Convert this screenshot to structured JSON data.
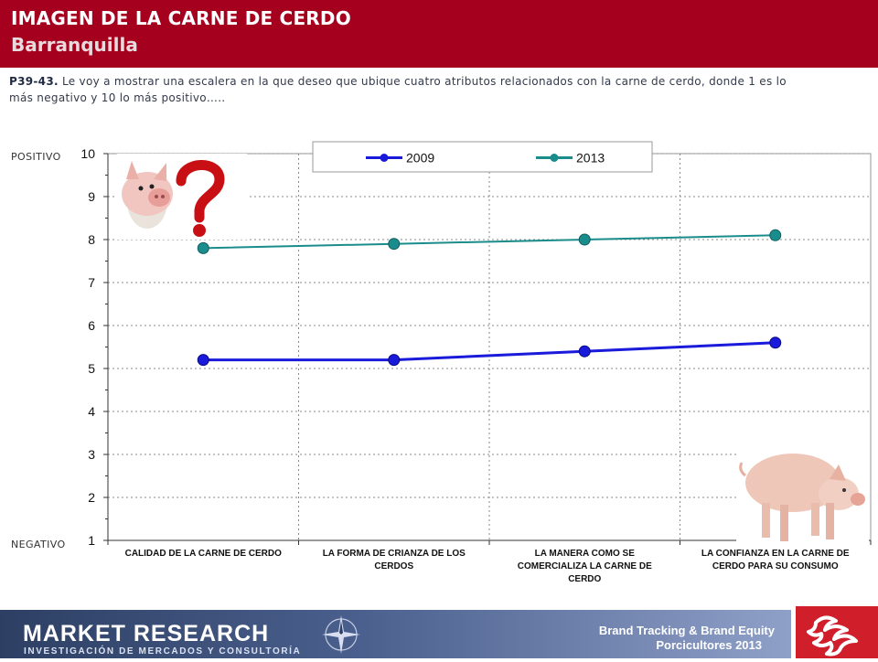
{
  "header": {
    "title": "IMAGEN DE LA CARNE DE CERDO",
    "subtitle": "Barranquilla",
    "color": "#a5001e"
  },
  "question": {
    "code": "P39-43.",
    "text": "Le voy a mostrar una escalera en la que deseo que ubique cuatro atributos relacionados con la carne de cerdo, donde 1 es lo más negativo y 10 lo más positivo….."
  },
  "scale_labels": {
    "top": "POSITIVO",
    "bottom": "NEGATIVO"
  },
  "chart_data": {
    "type": "line",
    "categories": [
      "CALIDAD DE LA CARNE DE CERDO",
      "LA FORMA DE CRIANZA DE LOS CERDOS",
      "LA MANERA COMO SE COMERCIALIZA LA CARNE DE CERDO",
      "LA CONFIANZA EN LA CARNE DE CERDO PARA SU CONSUMO"
    ],
    "category_lines": [
      [
        "CALIDAD DE LA CARNE DE CERDO"
      ],
      [
        "LA FORMA DE CRIANZA DE LOS",
        "CERDOS"
      ],
      [
        "LA MANERA COMO SE",
        "COMERCIALIZA LA CARNE DE",
        "CERDO"
      ],
      [
        "LA CONFIANZA EN LA CARNE DE",
        "CERDO PARA SU CONSUMO"
      ]
    ],
    "series": [
      {
        "name": "2009",
        "values": [
          5.2,
          5.2,
          5.4,
          5.6
        ],
        "color": "#1a1adb"
      },
      {
        "name": "2013",
        "values": [
          7.8,
          7.9,
          8.0,
          8.1
        ],
        "color": "#1a8c8c"
      }
    ],
    "ylim": [
      1,
      10
    ],
    "yticks": [
      1,
      2,
      3,
      4,
      5,
      6,
      7,
      8,
      9,
      10
    ],
    "grid": true,
    "legend_position": "top-center"
  },
  "footer": {
    "brand": "MARKET RESEARCH",
    "brand_sub": "INVESTIGACIÓN DE MERCADOS Y CONSULTORÍA",
    "line1": "Brand Tracking & Brand Equity",
    "line2": "Porcicultores 2013"
  },
  "icons": [
    "piglet-question-icon",
    "pig-photo-icon",
    "compass-icon",
    "company-logo-icon"
  ]
}
